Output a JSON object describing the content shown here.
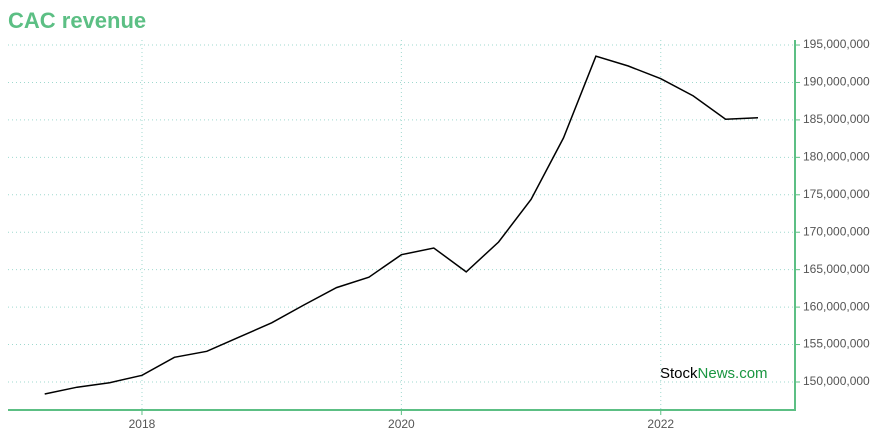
{
  "chart_data": {
    "type": "line",
    "title": "CAC revenue",
    "x": [
      2017.25,
      2017.5,
      2017.75,
      2018,
      2018.25,
      2018.5,
      2018.75,
      2019,
      2019.25,
      2019.5,
      2019.75,
      2020,
      2020.25,
      2020.5,
      2020.75,
      2021,
      2021.25,
      2021.5,
      2021.75,
      2022,
      2022.25,
      2022.5,
      2022.75
    ],
    "series": [
      {
        "name": "CAC revenue",
        "color": "#000000",
        "values": [
          148400000,
          149300000,
          149900000,
          150900000,
          153300000,
          154100000,
          156000000,
          157900000,
          160300000,
          162600000,
          164000000,
          167000000,
          167900000,
          164700000,
          168700000,
          174400000,
          182600000,
          193500000,
          192200000,
          190500000,
          188200000,
          185100000,
          185300000
        ]
      }
    ],
    "xlim": [
      2016.967,
      2023.035
    ],
    "xticks": [
      2018,
      2020,
      2022
    ],
    "ylim": [
      146260000,
      195670000
    ],
    "yticks": [
      {
        "value": 150000000,
        "label": "150,000,000"
      },
      {
        "value": 155000000,
        "label": "155,000,000"
      },
      {
        "value": 160000000,
        "label": "160,000,000"
      },
      {
        "value": 165000000,
        "label": "165,000,000"
      },
      {
        "value": 170000000,
        "label": "170,000,000"
      },
      {
        "value": 175000000,
        "label": "175,000,000"
      },
      {
        "value": 180000000,
        "label": "180,000,000"
      },
      {
        "value": 185000000,
        "label": "185,000,000"
      },
      {
        "value": 190000000,
        "label": "190,000,000"
      },
      {
        "value": 195000000,
        "label": "195,000,000"
      }
    ],
    "grid": true,
    "axis_color": "#5cbf84",
    "grid_color": "#9fd9cf",
    "watermark": [
      "Stock",
      "News.com"
    ]
  }
}
